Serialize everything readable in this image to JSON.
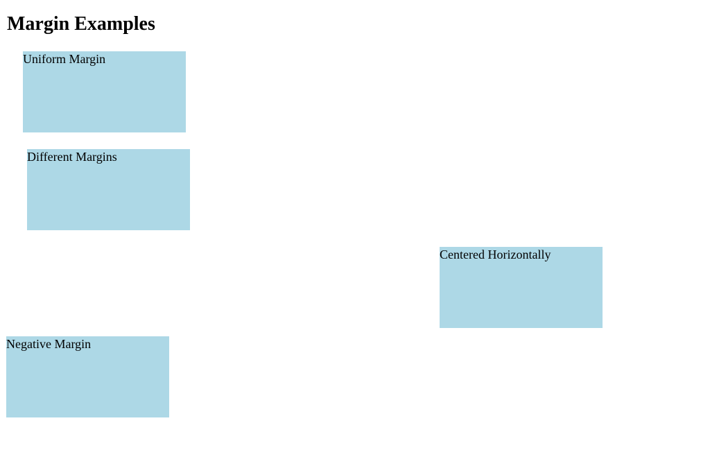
{
  "header": {
    "title": "Margin Examples"
  },
  "boxes": [
    {
      "label": "Uniform Margin"
    },
    {
      "label": "Different Margins"
    },
    {
      "label": "Centered Horizontally"
    },
    {
      "label": "Negative Margin"
    }
  ]
}
